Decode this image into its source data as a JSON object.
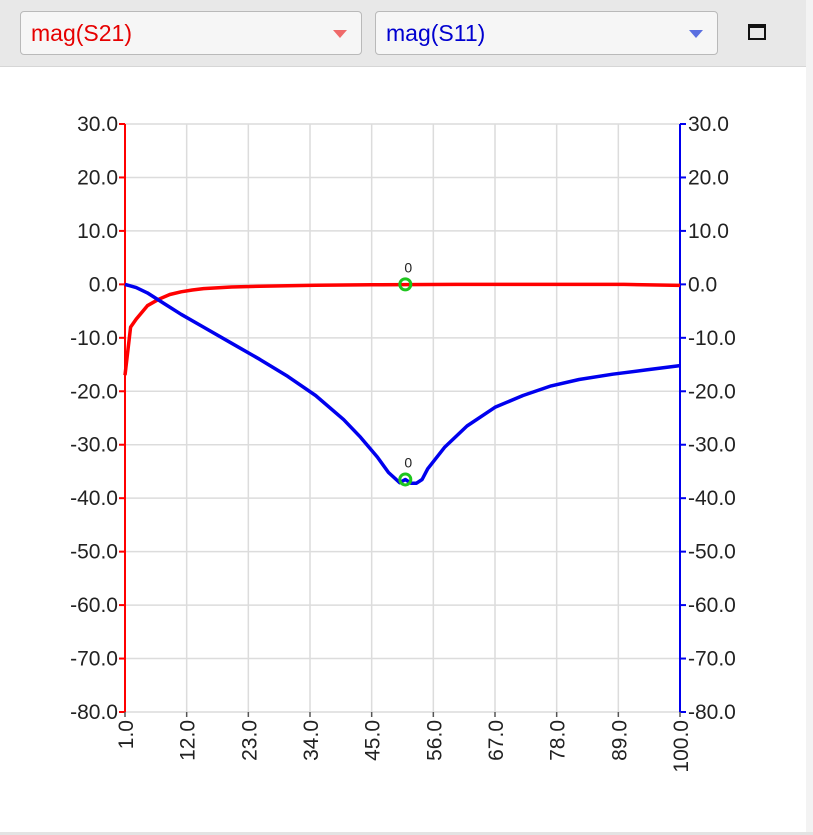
{
  "toolbar": {
    "left_select": {
      "value": "mag(S21)",
      "color": "#e60000"
    },
    "right_select": {
      "value": "mag(S11)",
      "color": "#0000d0"
    },
    "maximize_icon": "window-maximize-icon"
  },
  "chart_data": {
    "type": "line",
    "title": "",
    "xlabel": "",
    "ylabel": "",
    "xlim": [
      1.0,
      100.0
    ],
    "ylim_left": [
      -80.0,
      30.0
    ],
    "ylim_right": [
      -80.0,
      30.0
    ],
    "grid": true,
    "x_ticks": [
      "1.0",
      "12.0",
      "23.0",
      "34.0",
      "45.0",
      "56.0",
      "67.0",
      "78.0",
      "89.0",
      "100.0"
    ],
    "y_ticks_left": [
      "30.0",
      "20.0",
      "10.0",
      "0.0",
      "-10.0",
      "-20.0",
      "-30.0",
      "-40.0",
      "-50.0",
      "-60.0",
      "-70.0",
      "-80.0"
    ],
    "y_ticks_right": [
      "30.0",
      "20.0",
      "10.0",
      "0.0",
      "-10.0",
      "-20.0",
      "-30.0",
      "-40.0",
      "-50.0",
      "-60.0",
      "-70.0",
      "-80.0"
    ],
    "series": [
      {
        "name": "mag(S21)",
        "axis": "left",
        "color": "#ff0000",
        "x": [
          1,
          2,
          3,
          5,
          7,
          9,
          11,
          13,
          15,
          20,
          25,
          30,
          35,
          40,
          45,
          51,
          60,
          70,
          80,
          90,
          100
        ],
        "y": [
          -17,
          -8,
          -6.5,
          -4,
          -2.8,
          -1.9,
          -1.4,
          -1.05,
          -0.8,
          -0.5,
          -0.35,
          -0.25,
          -0.18,
          -0.12,
          -0.08,
          -0.05,
          0,
          0,
          0,
          0,
          -0.2
        ]
      },
      {
        "name": "mag(S11)",
        "axis": "right",
        "color": "#0000ee",
        "x": [
          1,
          3,
          5,
          8,
          11,
          15,
          20,
          25,
          30,
          35,
          40,
          43,
          46,
          48,
          50,
          51,
          52,
          53,
          54,
          55,
          58,
          62,
          67,
          72,
          77,
          82,
          88,
          94,
          100
        ],
        "y": [
          0,
          -0.6,
          -1.6,
          -3.6,
          -5.6,
          -8,
          -11,
          -14,
          -17.2,
          -20.8,
          -25.3,
          -28.6,
          -32.3,
          -35.2,
          -37.1,
          -36.5,
          -37.2,
          -37.2,
          -36.5,
          -34.5,
          -30.5,
          -26.5,
          -23,
          -20.8,
          -19,
          -17.8,
          -16.8,
          -16,
          -15.2
        ]
      }
    ],
    "markers": [
      {
        "series": "mag(S21)",
        "x": 51,
        "y": 0,
        "label": "0",
        "color": "#1ec51e"
      },
      {
        "series": "mag(S11)",
        "x": 51,
        "y": -36.5,
        "label": "0",
        "color": "#1ec51e"
      }
    ]
  }
}
